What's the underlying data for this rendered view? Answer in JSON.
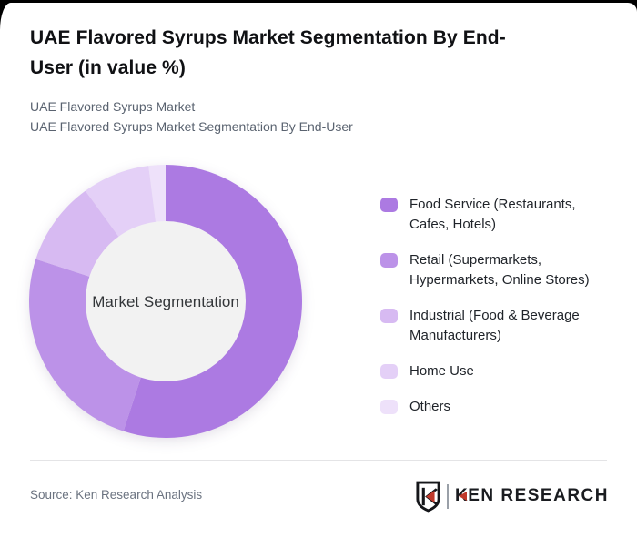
{
  "header": {
    "title_line1": "UAE Flavored Syrups Market Segmentation By End-",
    "title_line2": "User (in value %)",
    "subtitle_line1": "UAE Flavored Syrups Market",
    "subtitle_line2": "UAE Flavored Syrups Market Segmentation By End-User"
  },
  "chart_data": {
    "type": "pie",
    "subtype": "donut",
    "title": "UAE Flavored Syrups Market Segmentation By End-User (in value %)",
    "center_label": "Market Segmentation",
    "categories": [
      "Food Service (Restaurants, Cafes, Hotels)",
      "Retail (Supermarkets, Hypermarkets, Online Stores)",
      "Industrial (Food & Beverage Manufacturers)",
      "Home Use",
      "Others"
    ],
    "values": [
      55,
      25,
      10,
      8,
      2
    ],
    "unit": "value %",
    "colors": [
      "#ac7ae2",
      "#bc92e8",
      "#d7baf2",
      "#e4d0f7",
      "#eee1fa"
    ],
    "inner_circle_color": "#f2f2f2",
    "start_angle_deg": 0,
    "direction": "clockwise",
    "legend_position": "right",
    "data_labels_shown": false
  },
  "footer": {
    "source": "Source: Ken Research Analysis",
    "logo": {
      "badge_letter": "K",
      "wordmark_first_letter": "K",
      "wordmark_rest": "EN RESEARCH",
      "accent_color": "#c0392b"
    }
  }
}
